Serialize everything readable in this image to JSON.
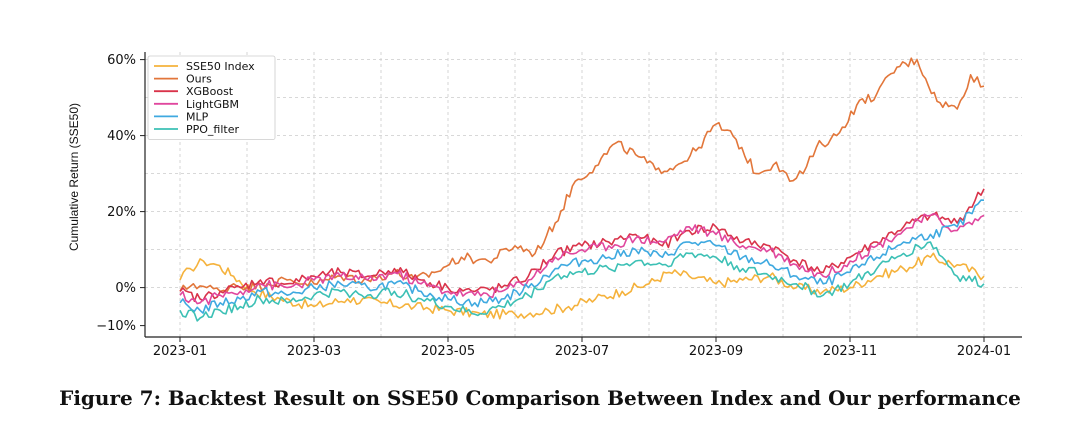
{
  "chart_data": {
    "type": "line",
    "title": "",
    "xlabel": "",
    "ylabel": "Cumulative Return (SSE50)",
    "x_ticks": [
      "2023-01",
      "2023-03",
      "2023-05",
      "2023-07",
      "2023-09",
      "2023-11",
      "2024-01"
    ],
    "y_ticks": [
      {
        "value": 60,
        "label": "60%"
      },
      {
        "value": 40,
        "label": "40%"
      },
      {
        "value": 20,
        "label": "20%"
      },
      {
        "value": 0,
        "label": "0%"
      },
      {
        "value": -10,
        "label": "−10%"
      }
    ],
    "ylim": [
      -13,
      62
    ],
    "xlim_months": [
      0,
      12
    ],
    "grid": true,
    "legend_position": "top-left",
    "series": [
      {
        "name": "SSE50 Index",
        "color": "#f5b23c",
        "x": [
          0,
          0.15,
          0.35,
          0.55,
          0.8,
          1.1,
          1.5,
          2.0,
          2.5,
          3.0,
          3.5,
          4.0,
          4.5,
          5.0,
          5.5,
          5.8,
          6.2,
          6.6,
          7.0,
          7.3,
          7.6,
          8.0,
          8.4,
          8.8,
          9.2,
          9.6,
          10.0,
          10.4,
          10.8,
          11.2,
          11.6,
          12.0
        ],
        "values": [
          2,
          5,
          7,
          6,
          3,
          -1,
          -3,
          -5,
          -3,
          -4,
          -5,
          -6,
          -7,
          -7,
          -6,
          -5,
          -3,
          -1,
          1,
          4,
          3,
          1,
          2,
          3,
          0,
          -1,
          0,
          3,
          5,
          8,
          6,
          3
        ]
      },
      {
        "name": "Ours",
        "color": "#e2763a",
        "x": [
          0,
          0.2,
          0.4,
          0.6,
          0.8,
          1.0,
          1.3,
          1.6,
          2.0,
          2.4,
          2.8,
          3.2,
          3.5,
          3.8,
          4.2,
          4.6,
          5.0,
          5.3,
          5.6,
          5.9,
          6.2,
          6.5,
          6.8,
          7.1,
          7.4,
          7.7,
          8.0,
          8.3,
          8.6,
          8.9,
          9.1,
          9.3,
          9.5,
          9.8,
          10.1,
          10.4,
          10.7,
          11.0,
          11.3,
          11.6,
          11.8,
          12.0
        ],
        "values": [
          -1,
          1,
          0,
          -1,
          1,
          0,
          1,
          2,
          1,
          3,
          2,
          4,
          2,
          4,
          8,
          7,
          11,
          9,
          17,
          28,
          32,
          38,
          35,
          31,
          32,
          36,
          43,
          39,
          30,
          33,
          28,
          30,
          37,
          40,
          48,
          51,
          58,
          60,
          49,
          47,
          56,
          53
        ]
      },
      {
        "name": "XGBoost",
        "color": "#d9334a",
        "x": [
          0,
          0.3,
          0.6,
          0.9,
          1.2,
          1.6,
          2.0,
          2.4,
          2.8,
          3.2,
          3.6,
          4.0,
          4.4,
          4.8,
          5.2,
          5.6,
          6.0,
          6.4,
          6.8,
          7.2,
          7.6,
          8.0,
          8.4,
          8.8,
          9.2,
          9.6,
          10.0,
          10.4,
          10.8,
          11.2,
          11.6,
          12.0
        ],
        "values": [
          -1,
          -3,
          -1,
          0,
          2,
          1,
          3,
          4,
          3,
          5,
          2,
          0,
          -1,
          0,
          3,
          9,
          11,
          12,
          14,
          11,
          15,
          16,
          12,
          11,
          7,
          4,
          8,
          12,
          16,
          19,
          17,
          26
        ]
      },
      {
        "name": "LightGBM",
        "color": "#e0479e",
        "x": [
          0,
          0.3,
          0.6,
          0.9,
          1.2,
          1.6,
          2.0,
          2.4,
          2.8,
          3.2,
          3.6,
          4.0,
          4.4,
          4.8,
          5.2,
          5.6,
          6.0,
          6.4,
          6.8,
          7.2,
          7.6,
          8.0,
          8.4,
          8.8,
          9.2,
          9.6,
          10.0,
          10.4,
          10.8,
          11.2,
          11.6,
          12.0
        ],
        "values": [
          -2,
          -4,
          -2,
          -1,
          1,
          0,
          2,
          3,
          2,
          4,
          1,
          -1,
          -2,
          -1,
          2,
          8,
          10,
          11,
          13,
          12,
          16,
          14,
          11,
          10,
          6,
          3,
          7,
          11,
          15,
          19,
          15,
          19
        ]
      },
      {
        "name": "MLP",
        "color": "#3fa9e0",
        "x": [
          0,
          0.3,
          0.6,
          0.9,
          1.2,
          1.6,
          2.0,
          2.4,
          2.8,
          3.2,
          3.6,
          4.0,
          4.4,
          4.8,
          5.2,
          5.6,
          6.0,
          6.4,
          6.8,
          7.2,
          7.6,
          8.0,
          8.4,
          8.8,
          9.2,
          9.6,
          10.0,
          10.4,
          10.8,
          11.2,
          11.6,
          12.0
        ],
        "values": [
          -4,
          -6,
          -4,
          -3,
          -1,
          -2,
          0,
          1,
          0,
          1,
          -1,
          -3,
          -4,
          -3,
          0,
          5,
          7,
          8,
          10,
          8,
          12,
          11,
          8,
          6,
          3,
          1,
          4,
          8,
          12,
          14,
          16,
          23
        ]
      },
      {
        "name": "PPO_filter",
        "color": "#3cc0b5",
        "x": [
          0,
          0.3,
          0.6,
          0.9,
          1.2,
          1.6,
          2.0,
          2.4,
          2.8,
          3.2,
          3.6,
          4.0,
          4.4,
          4.8,
          5.2,
          5.6,
          6.0,
          6.4,
          6.8,
          7.2,
          7.6,
          8.0,
          8.4,
          8.8,
          9.2,
          9.6,
          10.0,
          10.4,
          10.8,
          11.2,
          11.6,
          12.0
        ],
        "values": [
          -6,
          -8,
          -6,
          -5,
          -3,
          -4,
          -2,
          -1,
          -2,
          -1,
          -3,
          -5,
          -7,
          -5,
          -2,
          3,
          4,
          5,
          7,
          6,
          9,
          8,
          5,
          3,
          1,
          -2,
          1,
          5,
          9,
          12,
          3,
          1
        ]
      }
    ]
  },
  "caption": "Figure 7: Backtest Result on SSE50 Comparison Between Index and Our performance"
}
